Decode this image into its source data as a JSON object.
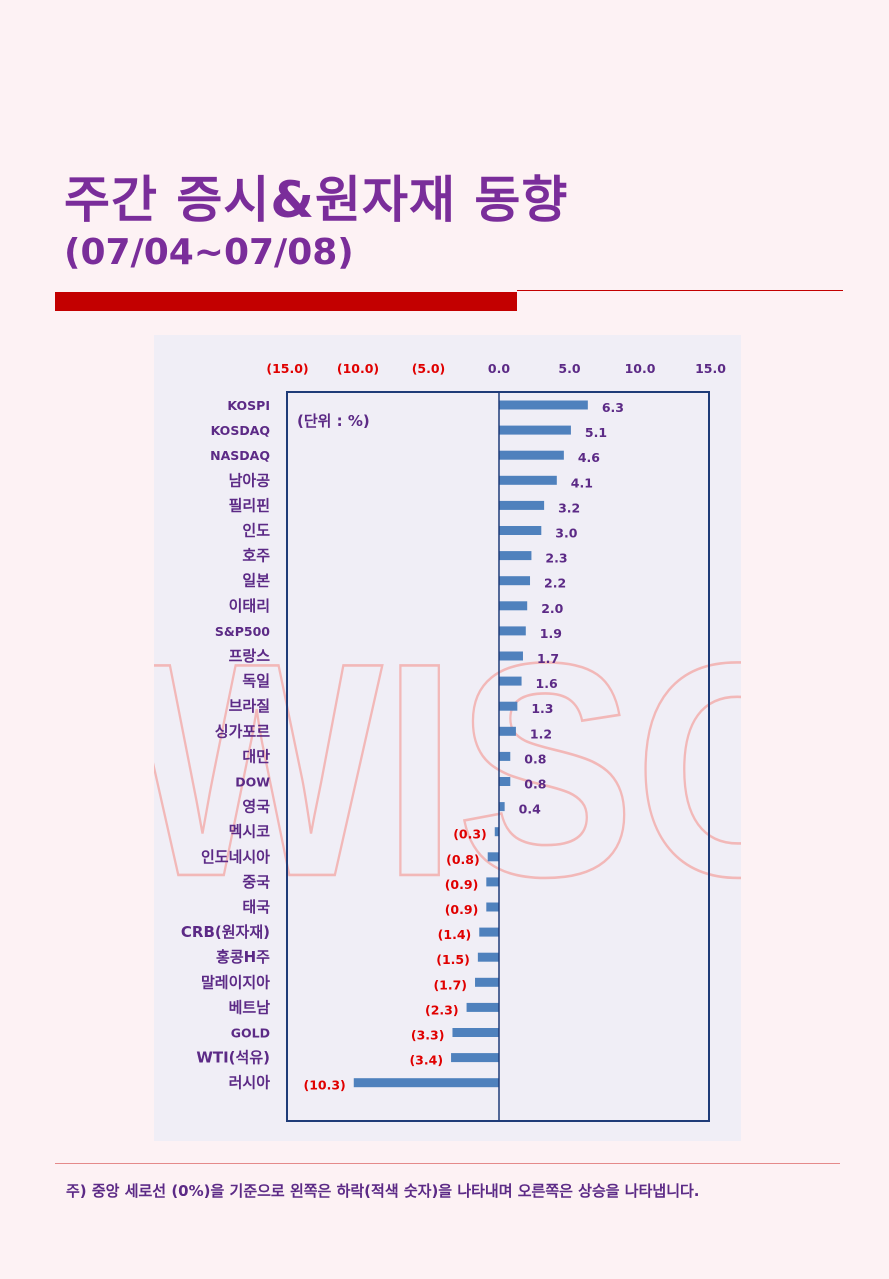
{
  "header": {
    "title": "주간 증시&원자재 동향",
    "subtitle": "(07/04~07/08)"
  },
  "colors": {
    "accent": "#7a2d9a",
    "bar": "#4f81bd",
    "negative_text": "#e00000",
    "red_rule": "#c30000",
    "watermark": "#f2b8b8"
  },
  "watermark": "WISC",
  "unit_label": "(단위 : %)",
  "footnote": "주) 중앙 세로선 (0%)을 기준으로 왼쪽은 하락(적색 숫자)을 나타내며 오른쪽은 상승을 나타냅니다.",
  "chart_data": {
    "type": "bar",
    "orientation": "horizontal",
    "xlim": [
      -15,
      15
    ],
    "x_ticks": [
      -15,
      -10,
      -5,
      0,
      5,
      10,
      15
    ],
    "x_tick_labels": [
      "(15.0)",
      "(10.0)",
      "(5.0)",
      "0.0",
      "5.0",
      "10.0",
      "15.0"
    ],
    "categories": [
      "KOSPI",
      "KOSDAQ",
      "NASDAQ",
      "남아공",
      "필리핀",
      "인도",
      "호주",
      "일본",
      "이태리",
      "S&P500",
      "프랑스",
      "독일",
      "브라질",
      "싱가포르",
      "대만",
      "DOW",
      "영국",
      "멕시코",
      "인도네시아",
      "중국",
      "태국",
      "CRB(원자재)",
      "홍콩H주",
      "말레이지아",
      "베트남",
      "GOLD",
      "WTI(석유)",
      "러시아"
    ],
    "values": [
      6.3,
      5.1,
      4.6,
      4.1,
      3.2,
      3.0,
      2.3,
      2.2,
      2.0,
      1.9,
      1.7,
      1.6,
      1.3,
      1.2,
      0.8,
      0.8,
      0.4,
      -0.3,
      -0.8,
      -0.9,
      -0.9,
      -1.4,
      -1.5,
      -1.7,
      -2.3,
      -3.3,
      -3.4,
      -10.3
    ],
    "value_labels": [
      "6.3",
      "5.1",
      "4.6",
      "4.1",
      "3.2",
      "3.0",
      "2.3",
      "2.2",
      "2.0",
      "1.9",
      "1.7",
      "1.6",
      "1.3",
      "1.2",
      "0.8",
      "0.8",
      "0.4",
      "(0.3)",
      "(0.8)",
      "(0.9)",
      "(0.9)",
      "(1.4)",
      "(1.5)",
      "(1.7)",
      "(2.3)",
      "(3.3)",
      "(3.4)",
      "(10.3)"
    ],
    "grid": false,
    "legend": "none"
  }
}
